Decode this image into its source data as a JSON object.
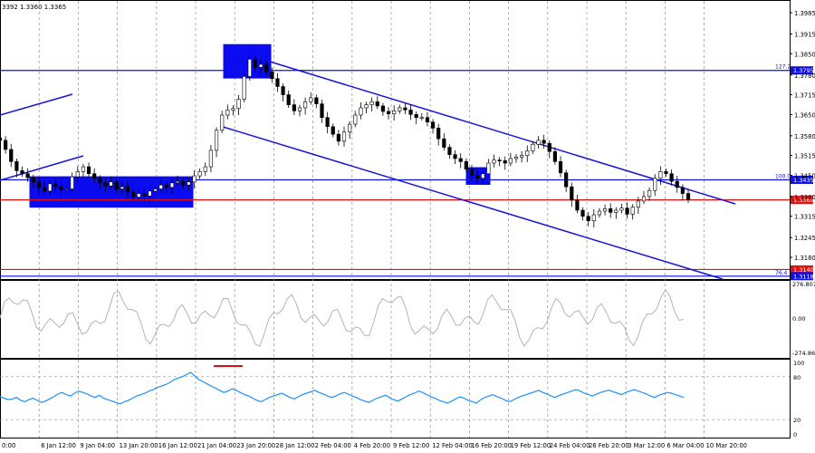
{
  "header": {
    "quote_text": "3392 1.3360 1.3365"
  },
  "chart_data": [
    {
      "type": "candlestick",
      "panel": "price",
      "y_axis_ticks": [
        "1.3985",
        "1.3915",
        "1.3850",
        "1.3780",
        "1.3715",
        "1.3650",
        "1.3580",
        "1.3515",
        "1.3450",
        "1.3380",
        "1.3315",
        "1.3245",
        "1.3180"
      ],
      "levels": [
        {
          "name": "fib-127",
          "fib_label": "127.2",
          "value": 1.3795,
          "label": "1.3795",
          "color": "#1010e0"
        },
        {
          "name": "fib-100",
          "fib_label": "100.0",
          "value": 1.3435,
          "label": "1.3435",
          "color": "#1010e0"
        },
        {
          "name": "current-price",
          "value": 1.3369,
          "label": "1.3369",
          "color": "#e01010"
        },
        {
          "name": "red-low",
          "value": 1.314,
          "label": "1.3140",
          "color": "#e01010"
        },
        {
          "name": "fib-76",
          "fib_label": "76.4",
          "value": 1.3118,
          "label": "1.3118",
          "color": "#1010e0"
        }
      ],
      "closes": [
        1.3565,
        1.3535,
        1.3495,
        1.3465,
        1.3455,
        1.3442,
        1.3428,
        1.341,
        1.3398,
        1.3422,
        1.3412,
        1.3402,
        1.3405,
        1.3445,
        1.3462,
        1.3478,
        1.3455,
        1.344,
        1.3425,
        1.3415,
        1.3428,
        1.3405,
        1.3412,
        1.3395,
        1.3378,
        1.339,
        1.3382,
        1.3398,
        1.3405,
        1.3418,
        1.341,
        1.3425,
        1.343,
        1.3418,
        1.3428,
        1.3448,
        1.3462,
        1.3478,
        1.3532,
        1.3598,
        1.3648,
        1.3665,
        1.367,
        1.37,
        1.3775,
        1.3832,
        1.3805,
        1.3815,
        1.379,
        1.3768,
        1.3742,
        1.3715,
        1.3682,
        1.3662,
        1.3672,
        1.3692,
        1.3705,
        1.3685,
        1.364,
        1.361,
        1.3585,
        1.3562,
        1.3592,
        1.3618,
        1.3648,
        1.3672,
        1.3682,
        1.3692,
        1.3678,
        1.366,
        1.3652,
        1.3662,
        1.3672,
        1.3665,
        1.365,
        1.364,
        1.364,
        1.3625,
        1.3605,
        1.357,
        1.3542,
        1.3518,
        1.3505,
        1.3495,
        1.347,
        1.345,
        1.344,
        1.3455,
        1.349,
        1.35,
        1.3498,
        1.349,
        1.3505,
        1.351,
        1.3515,
        1.353,
        1.3552,
        1.3565,
        1.3555,
        1.3528,
        1.3495,
        1.3458,
        1.3412,
        1.3368,
        1.3335,
        1.3315,
        1.33,
        1.332,
        1.3332,
        1.334,
        1.3328,
        1.3335,
        1.3342,
        1.3322,
        1.3345,
        1.3365,
        1.338,
        1.34,
        1.344,
        1.3462,
        1.3455,
        1.343,
        1.341,
        1.339,
        1.3369
      ],
      "boxes": [
        {
          "name": "box-jan-range",
          "top": 1.3445,
          "bottom": 1.3345
        },
        {
          "name": "box-jan-high",
          "top": 1.388,
          "bottom": 1.377
        },
        {
          "name": "box-feb-retest",
          "top": 1.3475,
          "bottom": 1.342
        }
      ]
    },
    {
      "type": "line",
      "panel": "cci",
      "y_axis_ticks": [
        "276.8074",
        "0.00",
        "-274.865"
      ],
      "ylim": [
        -274.865,
        276.8074
      ],
      "color": "#b4b4b4"
    },
    {
      "type": "line",
      "panel": "rsi",
      "y_axis_ticks": [
        "100",
        "80",
        "20",
        "0"
      ],
      "ylim": [
        0,
        100
      ],
      "color": "#1e90ff",
      "values": [
        52,
        50,
        48,
        49,
        51,
        47,
        45,
        48,
        50,
        47,
        44,
        46,
        49,
        52,
        56,
        58,
        55,
        53,
        57,
        60,
        58,
        56,
        53,
        51,
        54,
        50,
        48,
        46,
        44,
        42,
        45,
        47,
        50,
        53,
        55,
        57,
        60,
        62,
        65,
        67,
        69,
        72,
        76,
        78,
        80,
        83,
        86,
        81,
        76,
        73,
        70,
        67,
        64,
        61,
        58,
        60,
        63,
        61,
        58,
        55,
        53,
        50,
        47,
        45,
        48,
        51,
        53,
        55,
        57,
        54,
        51,
        49,
        52,
        55,
        57,
        59,
        61,
        58,
        56,
        53,
        51,
        53,
        56,
        58,
        56,
        53,
        51,
        48,
        46,
        44,
        47,
        50,
        52,
        54,
        51,
        48,
        46,
        49,
        52,
        55,
        57,
        60,
        58,
        55,
        52,
        50,
        47,
        45,
        43,
        46,
        49,
        52,
        50,
        47,
        45,
        43,
        48,
        51,
        53,
        55,
        52,
        50,
        47,
        45,
        48,
        51,
        53,
        55,
        57,
        59,
        61,
        58,
        56,
        53,
        51,
        54,
        56,
        58,
        60,
        62,
        60,
        57,
        55,
        53,
        56,
        58,
        60,
        61,
        59,
        57,
        55,
        58,
        60,
        62,
        60,
        58,
        56,
        53,
        51,
        54,
        56,
        58,
        57,
        55,
        53,
        51
      ]
    }
  ],
  "x_axis": {
    "labels": [
      "0:00",
      "6 Jan 12:00",
      "9 Jan 04:00",
      "13 Jan 20:00",
      "16 Jan 12:00",
      "21 Jan 04:00",
      "23 Jan 20:00",
      "28 Jan 12:00",
      "2 Feb 04:00",
      "4 Feb 20:00",
      "9 Feb 12:00",
      "12 Feb 04:00",
      "16 Feb 20:00",
      "19 Feb 12:00",
      "24 Feb 04:00",
      "26 Feb 20:00",
      "3 Mar 12:00",
      "6 Mar 04:00",
      "10 Mar 20:00"
    ]
  }
}
